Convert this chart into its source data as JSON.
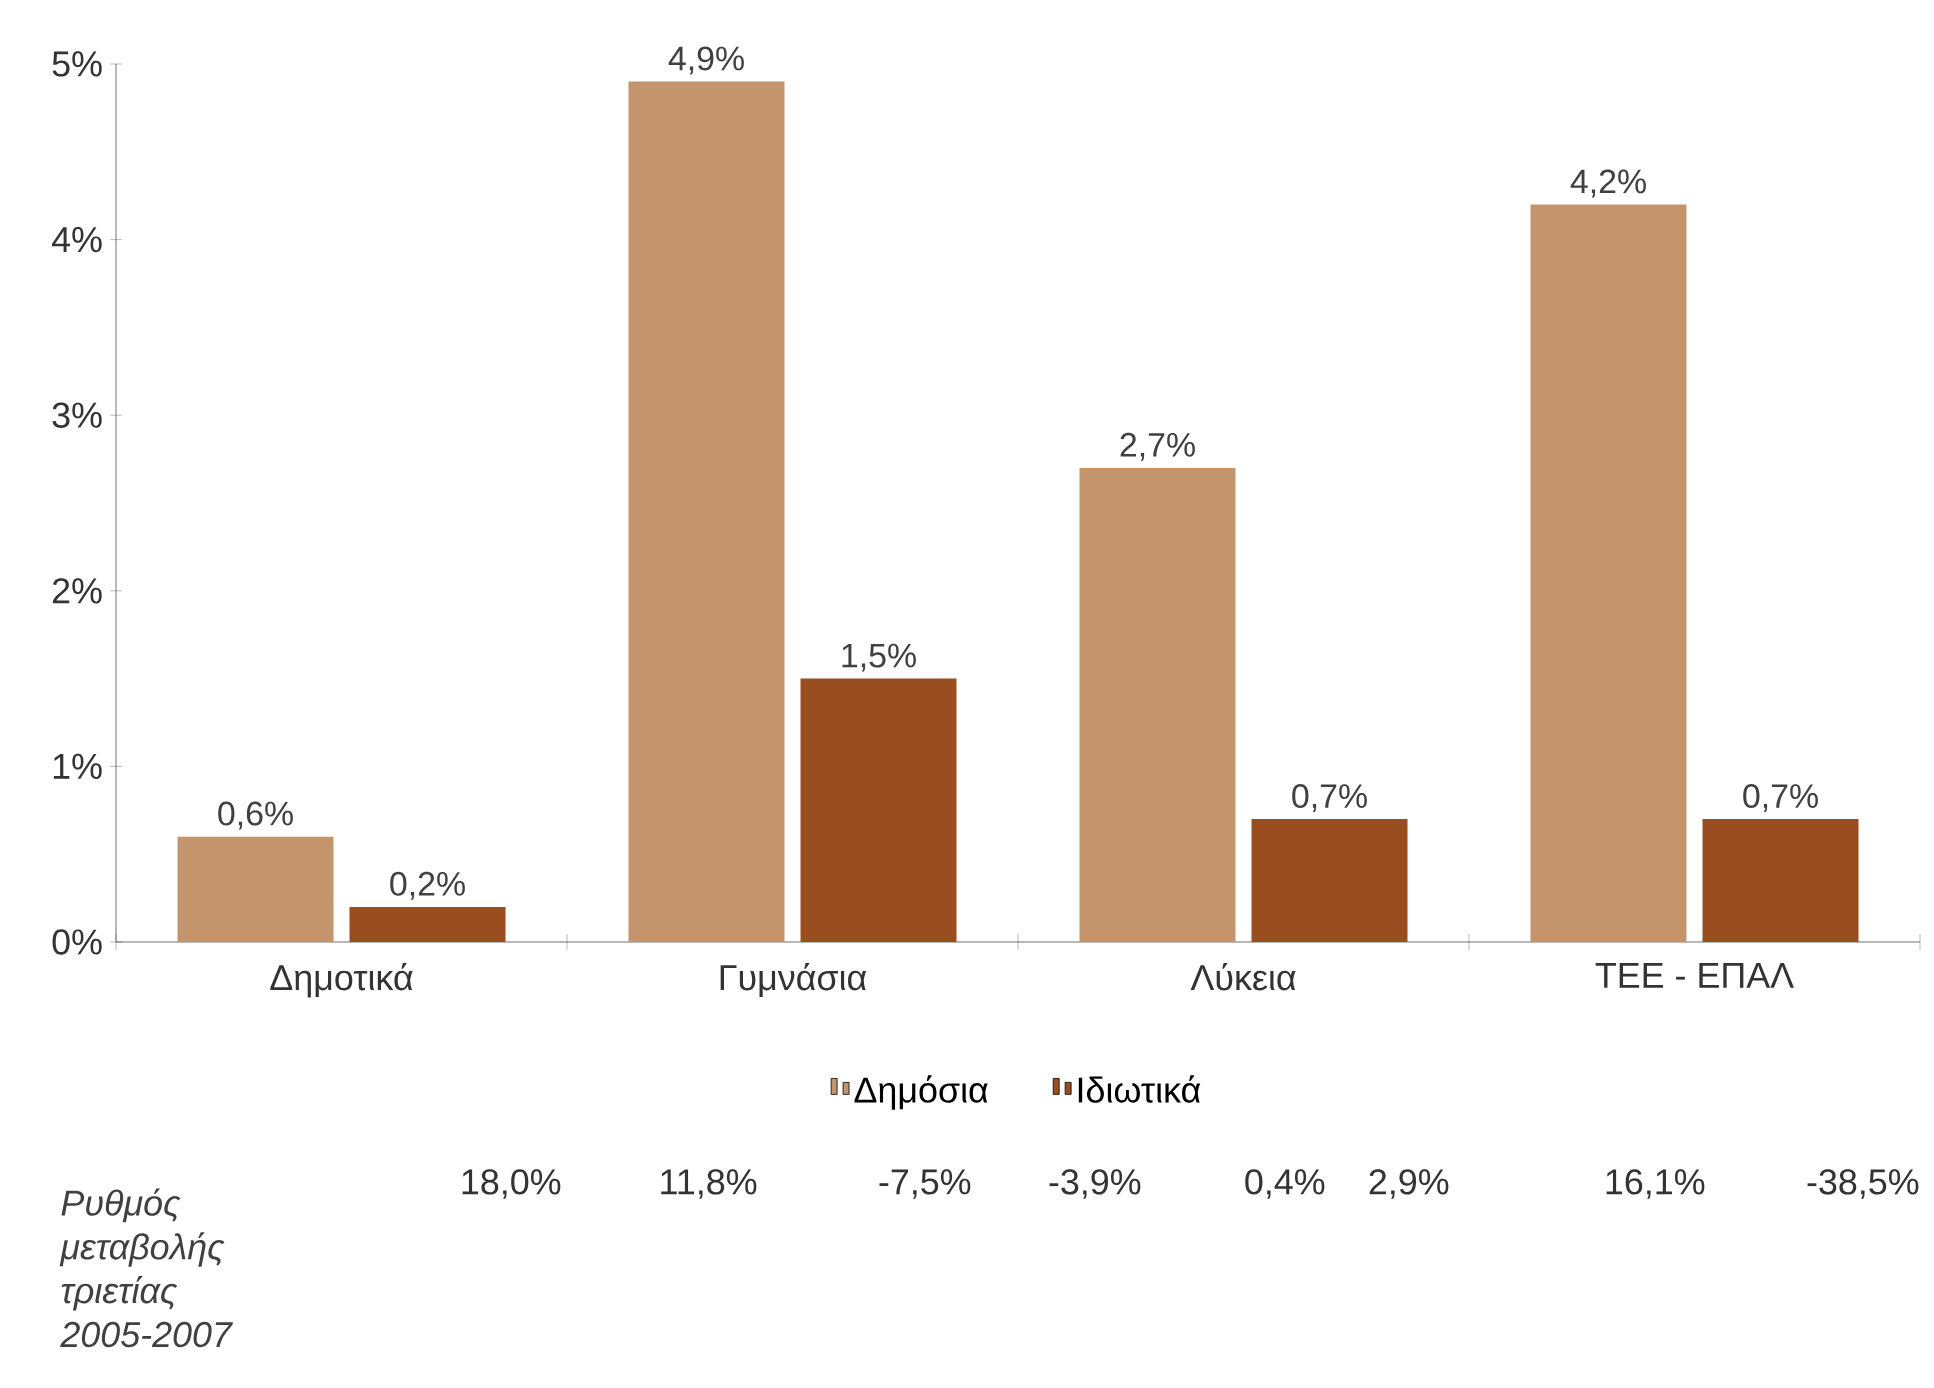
{
  "chart_data": {
    "type": "bar",
    "categories": [
      "Δημοτικά",
      "Γυμνάσια",
      "Λύκεια",
      "ΤΕΕ - ΕΠΑΛ"
    ],
    "series": [
      {
        "name": "Δημόσια",
        "color": "#c4956c",
        "values": [
          0.6,
          4.9,
          2.7,
          4.2
        ],
        "value_labels": [
          "0,6%",
          "4,9%",
          "2,7%",
          "4,2%"
        ]
      },
      {
        "name": "Ιδιωτικά",
        "color": "#9a4d1e",
        "values": [
          0.2,
          1.5,
          0.7,
          0.7
        ],
        "value_labels": [
          "0,2%",
          "1,5%",
          "0,7%",
          "0,7%"
        ]
      }
    ],
    "ylim": [
      0,
      5
    ],
    "yticks": [
      {
        "value": 0,
        "label": "0%"
      },
      {
        "value": 1,
        "label": "1%"
      },
      {
        "value": 2,
        "label": "2%"
      },
      {
        "value": 3,
        "label": "3%"
      },
      {
        "value": 4,
        "label": "4%"
      },
      {
        "value": 5,
        "label": "5%"
      }
    ],
    "legend": "bottom",
    "annotations": [
      "Ρυθμός μεταβολής τριετίας 2005-2007",
      "18,0%",
      "11,8%",
      "-7,5%",
      "-3,9%",
      "0,4%",
      "2,9%",
      "16,1%",
      "-38,5%"
    ]
  }
}
